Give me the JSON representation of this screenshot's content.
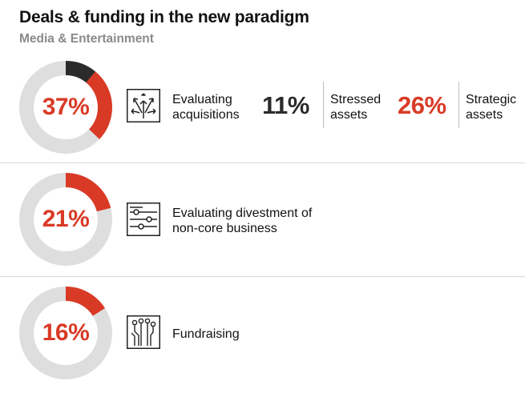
{
  "header": {
    "title": "Deals & funding in the new paradigm",
    "subtitle": "Media & Entertainment"
  },
  "colors": {
    "accent": "#d93a26",
    "dark": "#2b2b2b",
    "track": "#dedede",
    "subtitle": "#8a8a8a"
  },
  "chart_data": {
    "type": "pie",
    "variant": "donut",
    "rows": [
      {
        "value": 37,
        "label_text": "37%",
        "label_lines": [
          "Evaluating",
          "acquisitions"
        ],
        "icon": "diverging-arrows-icon",
        "breakdown": [
          {
            "value": 11,
            "value_text": "11%",
            "label_lines": [
              "Stressed",
              "assets"
            ],
            "color": "#2b2b2b"
          },
          {
            "value": 26,
            "value_text": "26%",
            "label_lines": [
              "Strategic",
              "assets"
            ],
            "color": "#d93a26"
          }
        ]
      },
      {
        "value": 21,
        "label_text": "21%",
        "label_lines": [
          "Evaluating divestment of",
          "non-core business"
        ],
        "icon": "sliders-icon",
        "breakdown": []
      },
      {
        "value": 16,
        "label_text": "16%",
        "label_lines": [
          "Fundraising"
        ],
        "icon": "circuit-nodes-icon",
        "breakdown": []
      }
    ]
  }
}
